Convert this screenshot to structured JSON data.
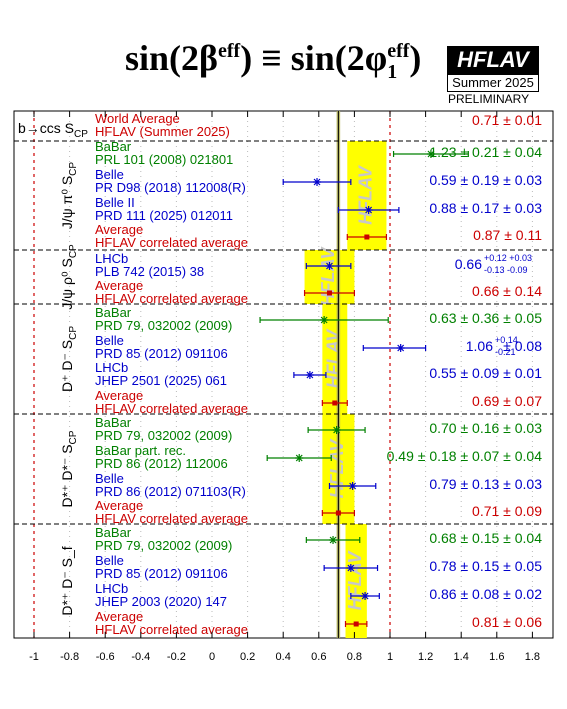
{
  "header": {
    "title": "sin(2β",
    "title_sup1": "eff",
    "title_mid": ") ≡ sin(2φ",
    "title_sub": "1",
    "title_sup2": "eff",
    "title_end": ")",
    "logo": "HFLAV",
    "season": "Summer 2025",
    "status": "PRELIMINARY"
  },
  "colors": {
    "green": "#008000",
    "blue": "#0000cc",
    "red": "#cc0000",
    "band": "#ffff00",
    "band_text": "#c8c8c8"
  },
  "chart_data": {
    "type": "error-bar summary",
    "title": "sin(2β^eff) ≡ sin(2φ1^eff)",
    "xlim": [
      -1.1,
      1.9
    ],
    "x_ticks": [
      "-1",
      "-0.8",
      "-0.6",
      "-0.4",
      "-0.2",
      "0",
      "0.2",
      "0.4",
      "0.6",
      "0.8",
      "1",
      "1.2",
      "1.4",
      "1.6",
      "1.8"
    ],
    "x_tick_values": [
      -1,
      -0.8,
      -0.6,
      -0.4,
      -0.2,
      0,
      0.2,
      0.4,
      0.6,
      0.8,
      1,
      1.2,
      1.4,
      1.6,
      1.8
    ],
    "boundary_lines": [
      -1,
      1
    ],
    "world_average": {
      "label": "b→ccs S",
      "label_sub": "CP",
      "name": "World Average",
      "source": "HFLAV (Summer 2025)",
      "value": 0.71,
      "err": 0.01,
      "text": "0.71 ± 0.01"
    },
    "groups": [
      {
        "label": "J/ψ π⁰ S",
        "label_sub": "CP",
        "band_value": 0.87,
        "band_err": 0.11,
        "band_text": "HFLAV",
        "entries": [
          {
            "exp": "BaBar",
            "ref": "PRL 101 (2008) 021801",
            "color": "green",
            "value": 1.23,
            "err_lo": 0.21,
            "err_hi": 0.21,
            "text": "1.23 ± 0.21 ± 0.04"
          },
          {
            "exp": "Belle",
            "ref": "PR D98 (2018) 112008(R)",
            "color": "blue",
            "value": 0.59,
            "err_lo": 0.19,
            "err_hi": 0.19,
            "text": "0.59 ± 0.19 ± 0.03"
          },
          {
            "exp": "Belle II",
            "ref": "PRD 111 (2025) 012011",
            "color": "blue",
            "value": 0.88,
            "err_lo": 0.17,
            "err_hi": 0.17,
            "text": "0.88 ± 0.17 ± 0.03"
          },
          {
            "exp": "Average",
            "ref": "HFLAV correlated average",
            "color": "red",
            "value": 0.87,
            "err_lo": 0.11,
            "err_hi": 0.11,
            "text": "0.87 ± 0.11"
          }
        ]
      },
      {
        "label": "J/ψ ρ⁰ S",
        "label_sub": "CP",
        "band_value": 0.66,
        "band_err": 0.14,
        "band_text": "HFLAV",
        "entries": [
          {
            "exp": "LHCb",
            "ref": "PLB 742 (2015) 38",
            "color": "blue",
            "value": 0.66,
            "err_lo": 0.13,
            "err_hi": 0.12,
            "text": "0.66",
            "text_sup": "+0.12 +0.03",
            "text_sub": "-0.13 -0.09"
          },
          {
            "exp": "Average",
            "ref": "HFLAV correlated average",
            "color": "red",
            "value": 0.66,
            "err_lo": 0.14,
            "err_hi": 0.14,
            "text": "0.66 ± 0.14"
          }
        ]
      },
      {
        "label": "D⁺ D⁻ S",
        "label_sub": "CP",
        "band_value": 0.69,
        "band_err": 0.07,
        "band_text": "HFLAV",
        "entries": [
          {
            "exp": "BaBar",
            "ref": "PRD 79, 032002 (2009)",
            "color": "green",
            "value": 0.63,
            "err_lo": 0.36,
            "err_hi": 0.36,
            "text": "0.63 ± 0.36 ± 0.05"
          },
          {
            "exp": "Belle",
            "ref": "PRD 85 (2012) 091106",
            "color": "blue",
            "value": 1.06,
            "err_lo": 0.21,
            "err_hi": 0.14,
            "text": "1.06",
            "text_sup": "+0.14",
            "text_sub": "-0.21",
            "text_tail": " ± 0.08"
          },
          {
            "exp": "LHCb",
            "ref": "JHEP 2501 (2025) 061",
            "color": "blue",
            "value": 0.55,
            "err_lo": 0.09,
            "err_hi": 0.09,
            "text": "0.55 ± 0.09 ± 0.01"
          },
          {
            "exp": "Average",
            "ref": "HFLAV correlated average",
            "color": "red",
            "value": 0.69,
            "err_lo": 0.07,
            "err_hi": 0.07,
            "text": "0.69 ± 0.07"
          }
        ]
      },
      {
        "label": "D*⁺ D*⁻ S",
        "label_sub": "CP",
        "band_value": 0.71,
        "band_err": 0.09,
        "band_text": "HFLAV",
        "entries": [
          {
            "exp": "BaBar",
            "ref": "PRD 79, 032002 (2009)",
            "color": "green",
            "value": 0.7,
            "err_lo": 0.16,
            "err_hi": 0.16,
            "text": "0.70 ± 0.16 ± 0.03"
          },
          {
            "exp": "BaBar part. rec.",
            "ref": "PRD 86 (2012) 112006",
            "color": "green",
            "value": 0.49,
            "err_lo": 0.18,
            "err_hi": 0.18,
            "text": "0.49 ± 0.18 ± 0.07 ± 0.04"
          },
          {
            "exp": "Belle",
            "ref": "PRD 86 (2012) 071103(R)",
            "color": "blue",
            "value": 0.79,
            "err_lo": 0.13,
            "err_hi": 0.13,
            "text": "0.79 ± 0.13 ± 0.03"
          },
          {
            "exp": "Average",
            "ref": "HFLAV correlated average",
            "color": "red",
            "value": 0.71,
            "err_lo": 0.09,
            "err_hi": 0.09,
            "text": "0.71 ± 0.09"
          }
        ]
      },
      {
        "label": "D*⁺ D⁻ S_f",
        "label_sub": "",
        "band_value": 0.81,
        "band_err": 0.06,
        "band_text": "HFLAV",
        "entries": [
          {
            "exp": "BaBar",
            "ref": "PRD 79, 032002 (2009)",
            "color": "green",
            "value": 0.68,
            "err_lo": 0.15,
            "err_hi": 0.15,
            "text": "0.68 ± 0.15 ± 0.04"
          },
          {
            "exp": "Belle",
            "ref": "PRD 85 (2012) 091106",
            "color": "blue",
            "value": 0.78,
            "err_lo": 0.15,
            "err_hi": 0.15,
            "text": "0.78 ± 0.15 ± 0.05"
          },
          {
            "exp": "LHCb",
            "ref": "JHEP 2003 (2020) 147",
            "color": "blue",
            "value": 0.86,
            "err_lo": 0.08,
            "err_hi": 0.08,
            "text": "0.86 ± 0.08 ± 0.02"
          },
          {
            "exp": "Average",
            "ref": "HFLAV correlated average",
            "color": "red",
            "value": 0.81,
            "err_lo": 0.06,
            "err_hi": 0.06,
            "text": "0.81 ± 0.06"
          }
        ]
      }
    ]
  }
}
